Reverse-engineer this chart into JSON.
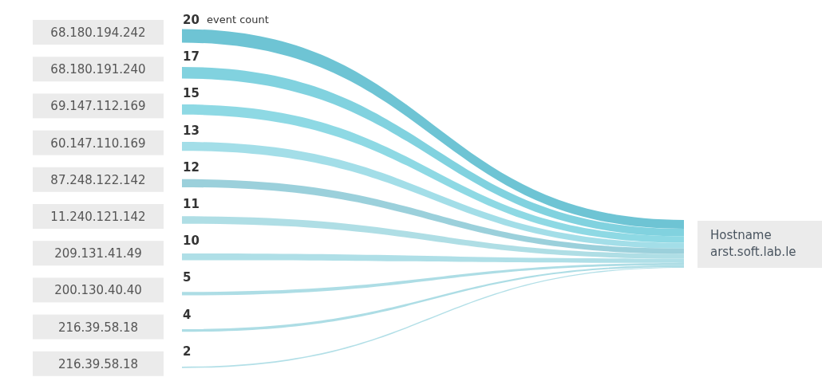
{
  "chart_data": {
    "type": "other",
    "categories": [
      "68.180.194.242",
      "68.180.191.240",
      "69.147.112.169",
      "60.147.110.169",
      "87.248.122.142",
      "11.240.121.142",
      "209.131.41.49",
      "200.130.40.40",
      "216.39.58.18",
      "216.39.58.18"
    ],
    "values": [
      20,
      17,
      15,
      13,
      12,
      11,
      10,
      5,
      4,
      2
    ],
    "data_labels": true,
    "annotations": [
      "event count",
      "Hostname",
      "arst.soft.lab.le"
    ]
  }
}
